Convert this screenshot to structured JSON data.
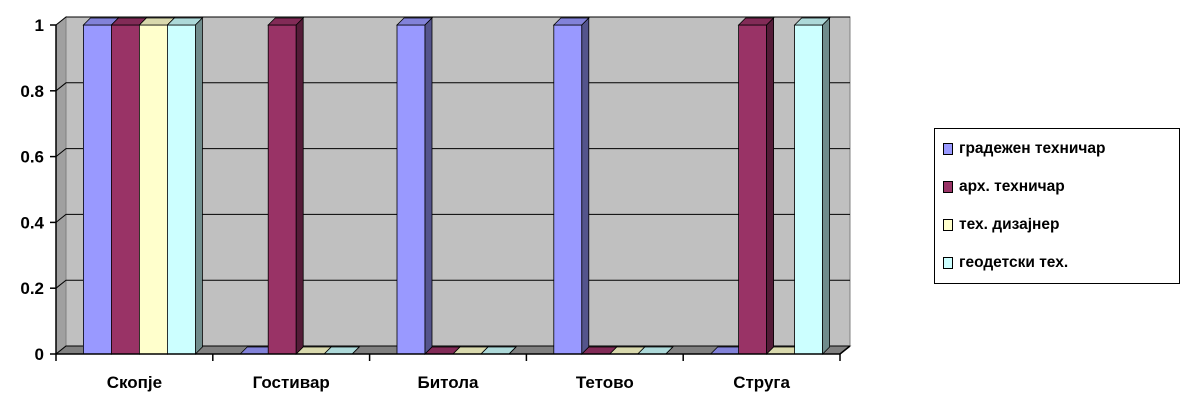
{
  "chart_data": {
    "type": "bar",
    "categories": [
      "Скопје",
      "Гостивар",
      "Битола",
      "Тетово",
      "Струга"
    ],
    "series": [
      {
        "name": "градежен техничар",
        "color": "#9999FF",
        "values": [
          1,
          0,
          1,
          1,
          0
        ]
      },
      {
        "name": "арх. техничар",
        "color": "#993366",
        "values": [
          1,
          1,
          0,
          0,
          1
        ]
      },
      {
        "name": "тех. дизајнер",
        "color": "#FFFFCC",
        "values": [
          1,
          0,
          0,
          0,
          0
        ]
      },
      {
        "name": "геодетски тех.",
        "color": "#CCFFFF",
        "values": [
          1,
          0,
          0,
          0,
          1
        ]
      }
    ],
    "ylim": [
      0,
      1
    ],
    "yticks": [
      "0",
      "0.2",
      "0.4",
      "0.6",
      "0.8",
      "1"
    ],
    "grid": true,
    "legend_position": "right",
    "plot_background": "#C0C0C0"
  }
}
